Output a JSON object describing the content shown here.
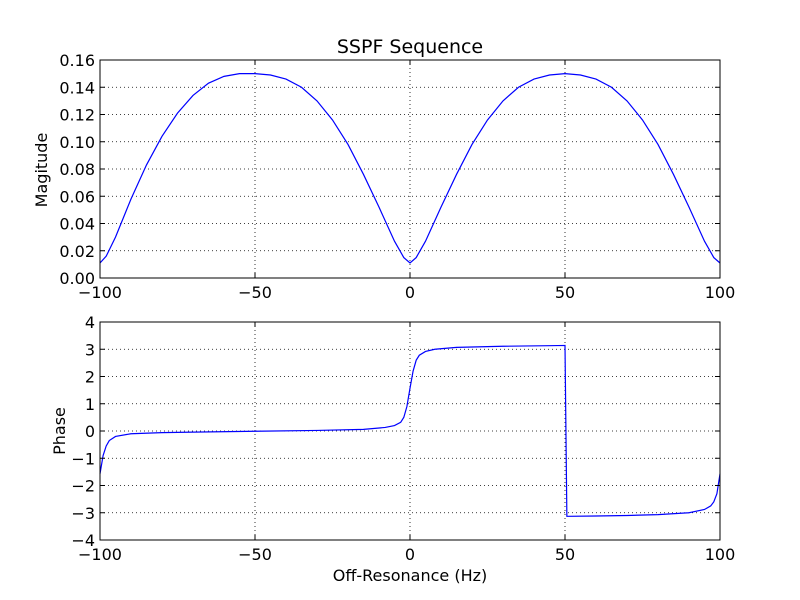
{
  "chart_data": [
    {
      "type": "line",
      "title": "SSPF Sequence",
      "xlabel": "",
      "ylabel": "Magitude",
      "xlim": [
        -100,
        100
      ],
      "ylim": [
        0,
        0.16
      ],
      "xticks": [
        -100,
        -50,
        0,
        50,
        100
      ],
      "xtick_labels": [
        "−100",
        "−50",
        "0",
        "50",
        "100"
      ],
      "yticks": [
        0,
        0.02,
        0.04,
        0.06,
        0.08,
        0.1,
        0.12,
        0.14,
        0.16
      ],
      "ytick_labels": [
        "0.00",
        "0.02",
        "0.04",
        "0.06",
        "0.08",
        "0.10",
        "0.12",
        "0.14",
        "0.16"
      ],
      "grid": true,
      "series": [
        {
          "color": "#0000ff",
          "x": [
            -100,
            -98,
            -95,
            -90,
            -85,
            -80,
            -75,
            -70,
            -65,
            -60,
            -55,
            -50,
            -45,
            -40,
            -35,
            -30,
            -25,
            -20,
            -15,
            -10,
            -5,
            -2,
            0,
            2,
            5,
            10,
            15,
            20,
            25,
            30,
            35,
            40,
            45,
            50,
            55,
            60,
            65,
            70,
            75,
            80,
            85,
            90,
            95,
            98,
            100
          ],
          "y": [
            0.011,
            0.016,
            0.03,
            0.058,
            0.083,
            0.104,
            0.121,
            0.134,
            0.143,
            0.148,
            0.15,
            0.15,
            0.149,
            0.146,
            0.14,
            0.13,
            0.116,
            0.098,
            0.076,
            0.052,
            0.027,
            0.015,
            0.011,
            0.015,
            0.027,
            0.052,
            0.076,
            0.098,
            0.116,
            0.13,
            0.14,
            0.146,
            0.149,
            0.15,
            0.149,
            0.146,
            0.14,
            0.13,
            0.116,
            0.098,
            0.076,
            0.052,
            0.027,
            0.015,
            0.011
          ]
        }
      ]
    },
    {
      "type": "line",
      "title": "",
      "xlabel": "Off-Resonance (Hz)",
      "ylabel": "Phase",
      "xlim": [
        -100,
        100
      ],
      "ylim": [
        -4,
        4
      ],
      "xticks": [
        -100,
        -50,
        0,
        50,
        100
      ],
      "xtick_labels": [
        "−100",
        "−50",
        "0",
        "50",
        "100"
      ],
      "yticks": [
        -4,
        -3,
        -2,
        -1,
        0,
        1,
        2,
        3,
        4
      ],
      "ytick_labels": [
        "−4",
        "−3",
        "−2",
        "−1",
        "0",
        "1",
        "2",
        "3",
        "4"
      ],
      "grid": true,
      "series": [
        {
          "color": "#0000ff",
          "x": [
            -100,
            -99,
            -98,
            -97,
            -95,
            -90,
            -80,
            -70,
            -50,
            -30,
            -15,
            -8,
            -5,
            -3,
            -2,
            -1,
            0,
            1,
            2,
            3,
            5,
            8,
            15,
            30,
            45,
            50,
            50.6,
            51,
            60,
            70,
            80,
            90,
            95,
            97,
            98,
            99,
            100
          ],
          "y": [
            -1.57,
            -0.9,
            -0.55,
            -0.35,
            -0.2,
            -0.1,
            -0.06,
            -0.04,
            -0.01,
            0.02,
            0.06,
            0.13,
            0.2,
            0.32,
            0.5,
            0.9,
            1.57,
            2.2,
            2.6,
            2.78,
            2.92,
            3.0,
            3.07,
            3.11,
            3.13,
            3.14,
            -3.13,
            -3.13,
            -3.12,
            -3.1,
            -3.07,
            -3.0,
            -2.88,
            -2.75,
            -2.6,
            -2.3,
            -1.57
          ]
        }
      ]
    }
  ]
}
